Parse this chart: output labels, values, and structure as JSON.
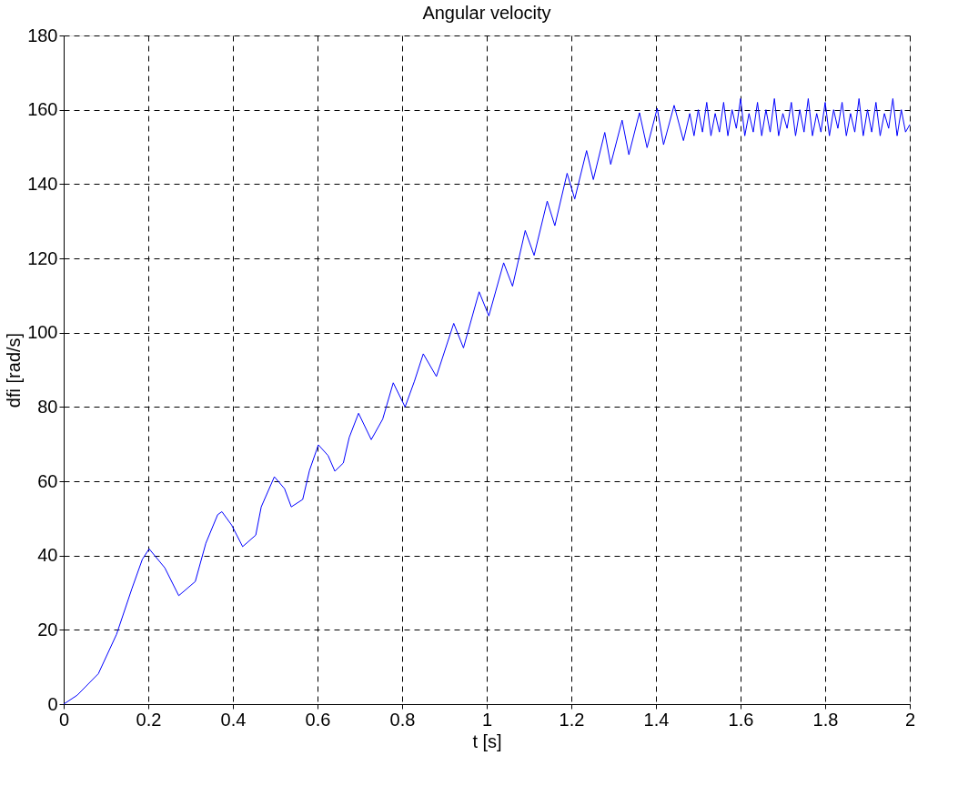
{
  "chart_data": {
    "type": "line",
    "title": "Angular velocity",
    "xlabel": "t [s]",
    "ylabel": "dfi [rad/s]",
    "xlim": [
      0,
      2
    ],
    "ylim": [
      0,
      180
    ],
    "xticks": [
      0,
      0.2,
      0.4,
      0.6,
      0.8,
      1,
      1.2,
      1.4,
      1.6,
      1.8,
      2
    ],
    "yticks": [
      0,
      20,
      40,
      60,
      80,
      100,
      120,
      140,
      160,
      180
    ],
    "grid": true,
    "line_style": "solid",
    "series": [
      {
        "color": "#0000ff",
        "x": [
          0,
          0.032,
          0.082,
          0.125,
          0.161,
          0.186,
          0.202,
          0.239,
          0.272,
          0.311,
          0.336,
          0.364,
          0.374,
          0.397,
          0.423,
          0.454,
          0.467,
          0.498,
          0.522,
          0.538,
          0.565,
          0.581,
          0.602,
          0.625,
          0.641,
          0.661,
          0.675,
          0.697,
          0.727,
          0.754,
          0.779,
          0.807,
          0.829,
          0.85,
          0.881,
          0.922,
          0.945,
          0.982,
          1.005,
          1.04,
          1.061,
          1.091,
          1.112,
          1.143,
          1.161,
          1.19,
          1.208,
          1.236,
          1.252,
          1.279,
          1.293,
          1.32,
          1.336,
          1.361,
          1.379,
          1.403,
          1.418,
          1.443,
          1.465,
          1.48,
          1.49,
          1.5,
          1.51,
          1.52,
          1.53,
          1.54,
          1.55,
          1.56,
          1.57,
          1.58,
          1.59,
          1.6,
          1.61,
          1.62,
          1.63,
          1.64,
          1.65,
          1.66,
          1.67,
          1.68,
          1.69,
          1.7,
          1.71,
          1.72,
          1.73,
          1.74,
          1.75,
          1.76,
          1.77,
          1.78,
          1.79,
          1.8,
          1.81,
          1.82,
          1.83,
          1.84,
          1.85,
          1.86,
          1.87,
          1.88,
          1.89,
          1.9,
          1.91,
          1.92,
          1.93,
          1.94,
          1.95,
          1.96,
          1.97,
          1.98,
          1.99,
          2
        ],
        "values": [
          0,
          2.4,
          8.2,
          18.8,
          31,
          39,
          41.8,
          36.7,
          29.2,
          33,
          43.3,
          51,
          51.8,
          48.2,
          42.4,
          45.5,
          53.1,
          61.2,
          58,
          53.1,
          55.1,
          62.9,
          69.8,
          66.9,
          62.7,
          64.9,
          71.8,
          78.3,
          71.2,
          76.7,
          86.5,
          80,
          86.9,
          94.3,
          88.2,
          102.5,
          95.9,
          111,
          104.5,
          118.8,
          112.5,
          127.5,
          120.8,
          135.4,
          128.8,
          142.9,
          136,
          149,
          141.2,
          153.9,
          145.3,
          157.2,
          147.9,
          159.2,
          149.8,
          160.4,
          150.6,
          161.2,
          151.7,
          159,
          153,
          160,
          154,
          162,
          153,
          159,
          154,
          162,
          153,
          160,
          155,
          163,
          153,
          159,
          154,
          162,
          153,
          160,
          154,
          163,
          153,
          159,
          155,
          162,
          153,
          160,
          154,
          163,
          153,
          159,
          154,
          162,
          153,
          160,
          155,
          162,
          153,
          159,
          154,
          163,
          153,
          160,
          154,
          162,
          153,
          159,
          155,
          163,
          153,
          160,
          154,
          156
        ]
      }
    ]
  }
}
